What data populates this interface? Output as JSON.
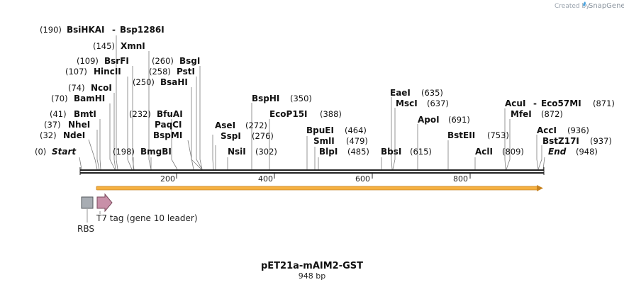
{
  "credit": {
    "prefix": "Created by",
    "brand": "SnapGene"
  },
  "plasmid": {
    "name": "pET21a-mAIM2-GST",
    "length_label": "948 bp"
  },
  "scale_ticks": [
    "200",
    "400",
    "600",
    "800"
  ],
  "sites": [
    {
      "pos": "(190)",
      "name": "BsiHKAI",
      "extra": "Bsp1286I"
    },
    {
      "pos": "(145)",
      "name": "XmnI"
    },
    {
      "pos": "(109)",
      "name": "BsrFI"
    },
    {
      "pos": "(260)",
      "name": "BsgI"
    },
    {
      "pos": "(107)",
      "name": "HincII"
    },
    {
      "pos": "(258)",
      "name": "PstI"
    },
    {
      "pos": "(250)",
      "name": "BsaHI"
    },
    {
      "pos": "(74)",
      "name": "NcoI"
    },
    {
      "pos": "(70)",
      "name": "BamHI"
    },
    {
      "pos": "(232)",
      "name": "BfuAI"
    },
    {
      "pos": "(41)",
      "name": "BmtI"
    },
    {
      "pos": "(37)",
      "name": "NheI"
    },
    {
      "pos": "(32)",
      "name": "NdeI"
    },
    {
      "pos": "(0)",
      "name": "Start"
    },
    {
      "pos": "(198)",
      "name": "BmgBI"
    },
    {
      "name": "PaqCI"
    },
    {
      "name": "BspMI"
    },
    {
      "pos": "(272)",
      "name": "AseI"
    },
    {
      "pos": "(276)",
      "name": "SspI"
    },
    {
      "pos": "(302)",
      "name": "NsiI"
    },
    {
      "pos": "(350)",
      "name": "BspHI"
    },
    {
      "pos": "(388)",
      "name": "EcoP15I"
    },
    {
      "pos": "(464)",
      "name": "BpuEI"
    },
    {
      "pos": "(479)",
      "name": "SmlI"
    },
    {
      "pos": "(485)",
      "name": "BlpI"
    },
    {
      "pos": "(635)",
      "name": "EaeI"
    },
    {
      "pos": "(637)",
      "name": "MscI"
    },
    {
      "pos": "(615)",
      "name": "BbsI"
    },
    {
      "pos": "(691)",
      "name": "ApoI"
    },
    {
      "pos": "(753)",
      "name": "BstEII"
    },
    {
      "pos": "(809)",
      "name": "AclI"
    },
    {
      "pos": "(871)",
      "name": "AcuI",
      "extra": "Eco57MI"
    },
    {
      "pos": "(872)",
      "name": "MfeI"
    },
    {
      "pos": "(936)",
      "name": "AccI"
    },
    {
      "pos": "(937)",
      "name": "BstZ17I"
    },
    {
      "pos": "(948)",
      "name": "End"
    }
  ],
  "features": {
    "rbs_label": "RBS",
    "t7_label": "T7 tag (gene 10 leader)",
    "colors": {
      "orf": "#f5b040",
      "rbs": "#a8adb3",
      "t7": "#c890a8"
    }
  }
}
